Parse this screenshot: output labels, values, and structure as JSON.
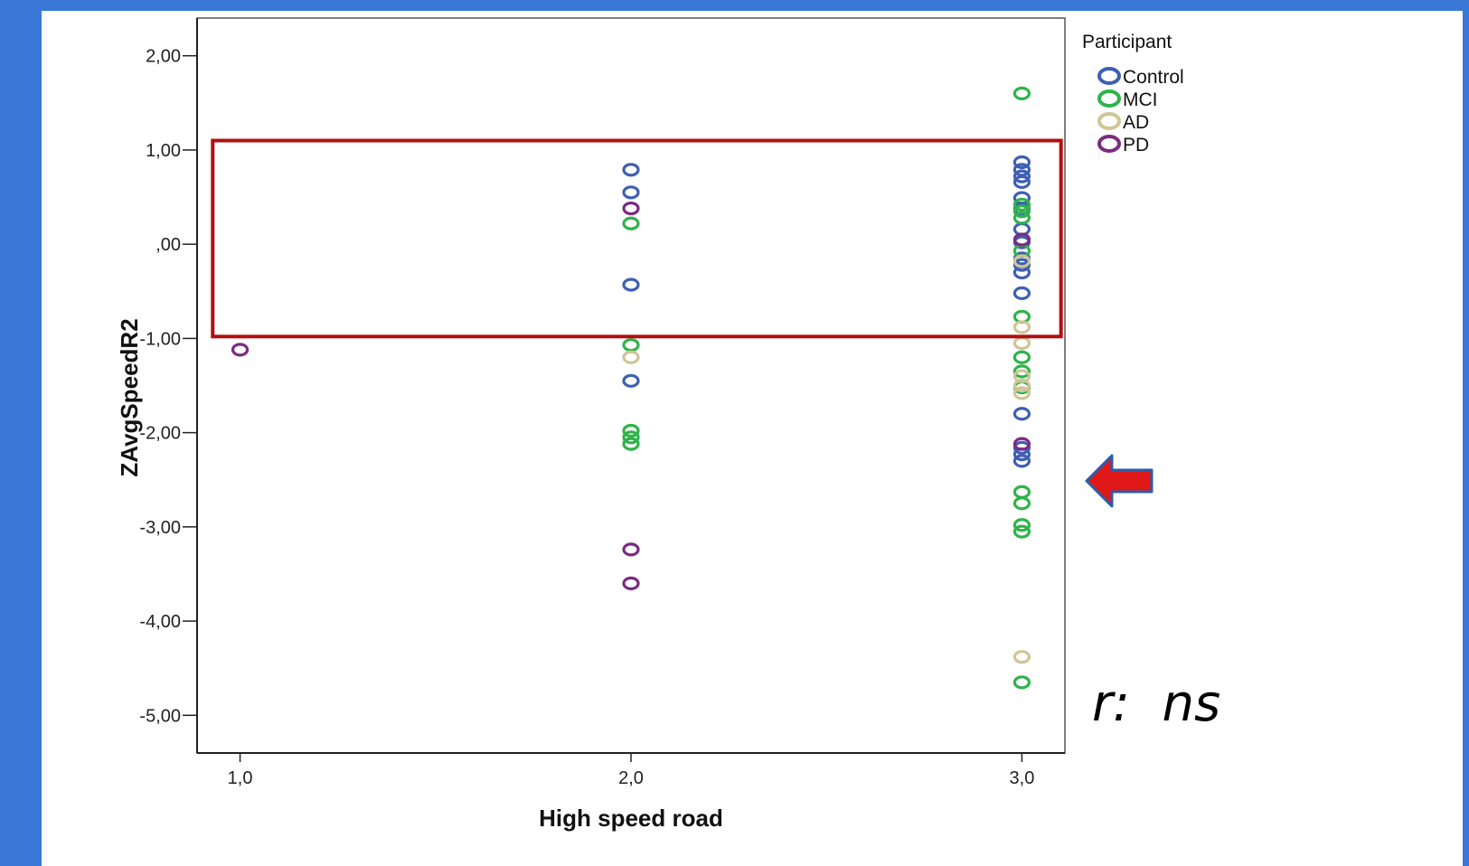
{
  "chart_data": {
    "type": "scatter",
    "xlabel": "High speed road",
    "ylabel": "ZAvgSpeedR2",
    "x_ticks": [
      "1,0",
      "2,0",
      "3,0"
    ],
    "x_tick_values": [
      1,
      2,
      3
    ],
    "y_ticks": [
      "2,00",
      "1,00",
      ",00",
      "-1,00",
      "-2,00",
      "-3,00",
      "-4,00",
      "-5,00"
    ],
    "y_tick_values": [
      2,
      1,
      0,
      -1,
      -2,
      -3,
      -4,
      -5
    ],
    "xlim": [
      0.89,
      3.11
    ],
    "ylim": [
      -5.4,
      2.4
    ],
    "grid": false,
    "legend": {
      "title": "Participant",
      "position": "top-right"
    },
    "series": [
      {
        "name": "Control",
        "color": "#3f5fb4",
        "points": [
          [
            2,
            0.79
          ],
          [
            2,
            0.55
          ],
          [
            2,
            -0.43
          ],
          [
            2,
            -1.45
          ],
          [
            3,
            0.87
          ],
          [
            3,
            0.79
          ],
          [
            3,
            0.72
          ],
          [
            3,
            0.66
          ],
          [
            3,
            0.49
          ],
          [
            3,
            0.38
          ],
          [
            3,
            0.16
          ],
          [
            3,
            0.02
          ],
          [
            3,
            -0.15
          ],
          [
            3,
            -0.22
          ],
          [
            3,
            -0.3
          ],
          [
            3,
            -0.52
          ],
          [
            3,
            -1.8
          ],
          [
            3,
            -2.16
          ],
          [
            3,
            -2.23
          ],
          [
            3,
            -2.3
          ]
        ]
      },
      {
        "name": "MCI",
        "color": "#2fb34a",
        "points": [
          [
            2,
            0.22
          ],
          [
            2,
            -1.07
          ],
          [
            2,
            -1.98
          ],
          [
            2,
            -2.05
          ],
          [
            2,
            -2.12
          ],
          [
            3,
            1.6
          ],
          [
            3,
            0.42
          ],
          [
            3,
            0.35
          ],
          [
            3,
            0.28
          ],
          [
            3,
            -0.07
          ],
          [
            3,
            -0.77
          ],
          [
            3,
            -1.2
          ],
          [
            3,
            -1.35
          ],
          [
            3,
            -1.52
          ],
          [
            3,
            -2.63
          ],
          [
            3,
            -2.75
          ],
          [
            3,
            -2.98
          ],
          [
            3,
            -3.05
          ],
          [
            3,
            -4.65
          ]
        ]
      },
      {
        "name": "AD",
        "color": "#cfc596",
        "points": [
          [
            2,
            -1.2
          ],
          [
            3,
            -0.18
          ],
          [
            3,
            -0.88
          ],
          [
            3,
            -1.05
          ],
          [
            3,
            -1.4
          ],
          [
            3,
            -1.5
          ],
          [
            3,
            -1.58
          ],
          [
            3,
            -4.38
          ]
        ]
      },
      {
        "name": "PD",
        "color": "#7c2a82",
        "points": [
          [
            1,
            -1.12
          ],
          [
            2,
            0.38
          ],
          [
            2,
            -3.24
          ],
          [
            2,
            -3.6
          ],
          [
            3,
            0.05
          ],
          [
            3,
            -2.12
          ]
        ]
      }
    ],
    "highlight_box": {
      "y_from": -0.98,
      "y_to": 1.1,
      "x_from": 0.93,
      "x_to": 3.1,
      "color": "#b01010"
    },
    "annotation": "r:  ns"
  }
}
